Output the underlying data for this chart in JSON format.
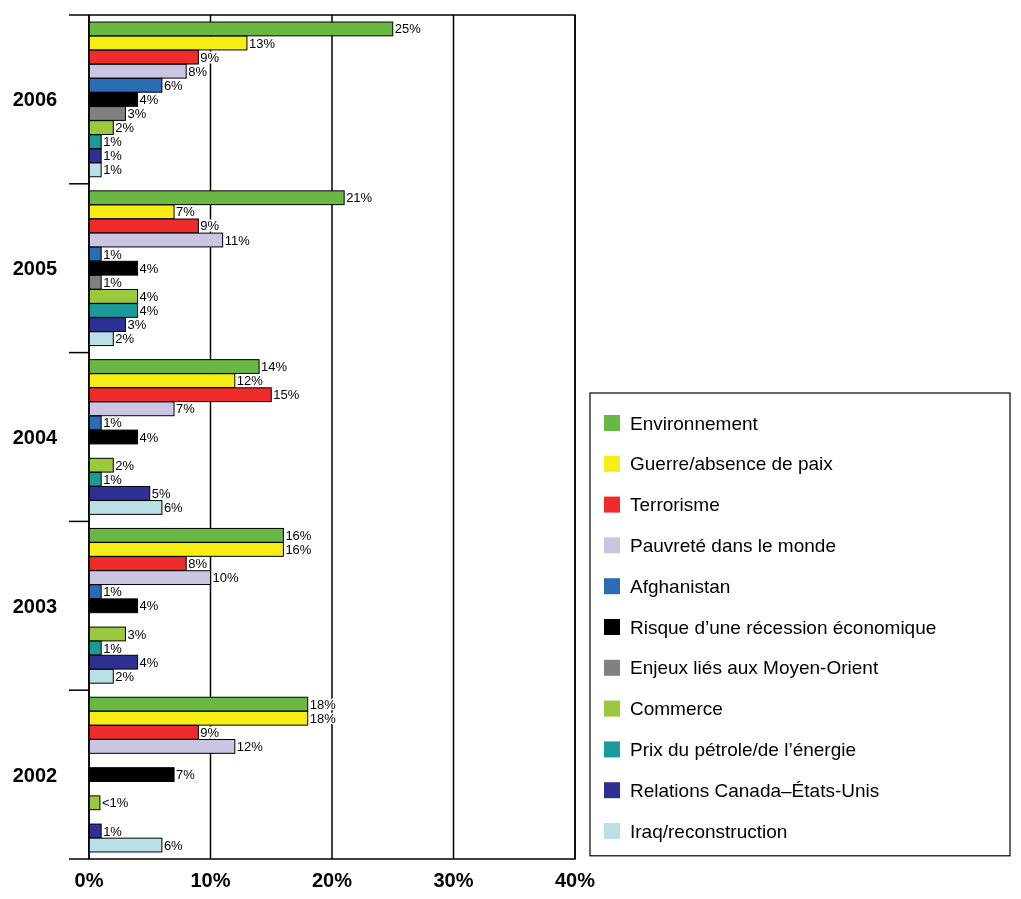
{
  "chart_data": {
    "type": "bar",
    "orientation": "horizontal",
    "categories": [
      "2006",
      "2005",
      "2004",
      "2003",
      "2002"
    ],
    "xlim": [
      0,
      40
    ],
    "xticks": [
      {
        "value": 0,
        "label": "0%"
      },
      {
        "value": 10,
        "label": "10%"
      },
      {
        "value": 20,
        "label": "20%"
      },
      {
        "value": 30,
        "label": "30%"
      },
      {
        "value": 40,
        "label": "40%"
      }
    ],
    "grid": "x",
    "legend": "right",
    "series": [
      {
        "name": "Environnement",
        "color": "#6ab843",
        "values": [
          25,
          21,
          14,
          16,
          18
        ],
        "value_labels": [
          "25%",
          "21%",
          "14%",
          "16%",
          "18%"
        ]
      },
      {
        "name": "Guerre/absence de paix",
        "color": "#f7ec13",
        "values": [
          13,
          7,
          12,
          16,
          18
        ],
        "value_labels": [
          "13%",
          "7%",
          "12%",
          "16%",
          "18%"
        ]
      },
      {
        "name": "Terrorisme",
        "color": "#ee2c2c",
        "values": [
          9,
          9,
          15,
          8,
          9
        ],
        "value_labels": [
          "9%",
          "9%",
          "15%",
          "8%",
          "9%"
        ]
      },
      {
        "name": "Pauvreté dans le monde",
        "color": "#c9c5e3",
        "values": [
          8,
          11,
          7,
          10,
          12
        ],
        "value_labels": [
          "8%",
          "11%",
          "7%",
          "10%",
          "12%"
        ]
      },
      {
        "name": "Afghanistan",
        "color": "#2a6db5",
        "values": [
          6,
          1,
          1,
          1,
          null
        ],
        "value_labels": [
          "6%",
          "1%",
          "1%",
          "1%",
          null
        ]
      },
      {
        "name": "Risque d’une récession économique",
        "color": "#000000",
        "values": [
          4,
          4,
          4,
          4,
          7
        ],
        "value_labels": [
          "4%",
          "4%",
          "4%",
          "4%",
          "7%"
        ]
      },
      {
        "name": "Enjeux liés aux Moyen-Orient",
        "color": "#808080",
        "values": [
          3,
          1,
          null,
          null,
          null
        ],
        "value_labels": [
          "3%",
          "1%",
          null,
          null,
          null
        ]
      },
      {
        "name": "Commerce",
        "color": "#9bc83c",
        "values": [
          2,
          4,
          2,
          3,
          0.9
        ],
        "value_labels": [
          "2%",
          "4%",
          "2%",
          "3%",
          "<1%"
        ]
      },
      {
        "name": "Prix du pétrole/de l’énergie",
        "color": "#1a9a9a",
        "values": [
          1,
          4,
          1,
          1,
          null
        ],
        "value_labels": [
          "1%",
          "4%",
          "1%",
          "1%",
          null
        ]
      },
      {
        "name": "Relations Canada–États-Unis",
        "color": "#2e3192",
        "values": [
          1,
          3,
          5,
          4,
          1
        ],
        "value_labels": [
          "1%",
          "3%",
          "5%",
          "4%",
          "1%"
        ]
      },
      {
        "name": "Iraq/reconstruction",
        "color": "#b9e0e6",
        "values": [
          1,
          2,
          6,
          2,
          6
        ],
        "value_labels": [
          "1%",
          "2%",
          "6%",
          "2%",
          "6%"
        ]
      }
    ]
  }
}
